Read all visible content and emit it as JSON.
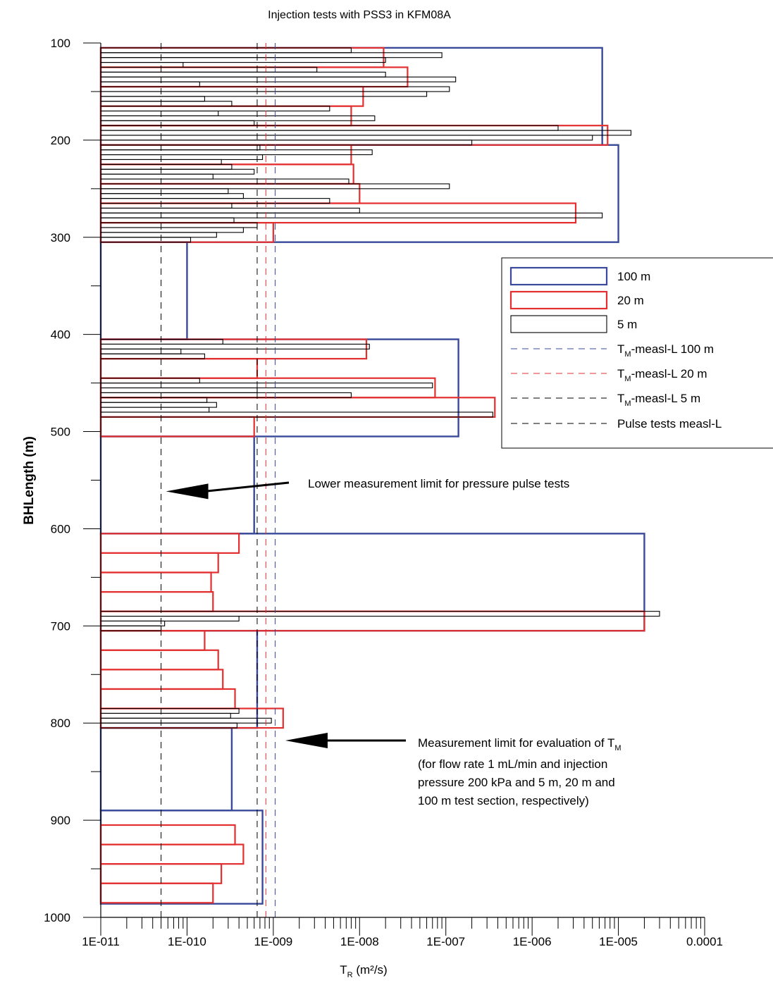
{
  "chart_data": {
    "type": "bar",
    "orientation": "horizontal",
    "title": "Injection tests with PSS3 in KFM08A",
    "ylabel": "BHLength (m)",
    "xlabel": {
      "main": "T",
      "sub": "R",
      "unit": " (m²/s)"
    },
    "x_scale": "log",
    "xlim": [
      1e-11,
      0.0001
    ],
    "ylim": [
      100,
      1000
    ],
    "y_inverted": true,
    "grid": false,
    "legend_placement": "right",
    "x_ticks": [
      "1E-011",
      "1E-010",
      "1E-009",
      "1E-008",
      "1E-007",
      "1E-006",
      "1E-005",
      "0.0001"
    ],
    "y_ticks": [
      "100",
      "200",
      "300",
      "400",
      "500",
      "600",
      "700",
      "800",
      "900",
      "1000"
    ],
    "series": [
      {
        "name": "100 m",
        "color": "#3a4a9a",
        "bars": [
          {
            "from": 105,
            "to": 205,
            "value": 6.5e-06
          },
          {
            "from": 205,
            "to": 305,
            "value": 1e-05
          },
          {
            "from": 305,
            "to": 405,
            "value": 1e-10
          },
          {
            "from": 405,
            "to": 505,
            "value": 1.4e-07
          },
          {
            "from": 505,
            "to": 605,
            "value": 6e-10
          },
          {
            "from": 605,
            "to": 705,
            "value": 2e-05
          },
          {
            "from": 705,
            "to": 805,
            "value": 6.5e-10
          },
          {
            "from": 805,
            "to": 890,
            "value": 3.3e-10
          },
          {
            "from": 890,
            "to": 986,
            "value": 7.5e-10
          }
        ]
      },
      {
        "name": "20 m",
        "color": "#e32f2f",
        "bars": [
          {
            "from": 105,
            "to": 125,
            "value": 1.9e-08
          },
          {
            "from": 125,
            "to": 145,
            "value": 3.6e-08
          },
          {
            "from": 145,
            "to": 165,
            "value": 1.1e-08
          },
          {
            "from": 165,
            "to": 185,
            "value": 8e-09
          },
          {
            "from": 185,
            "to": 205,
            "value": 7.5e-06
          },
          {
            "from": 205,
            "to": 225,
            "value": 8e-09
          },
          {
            "from": 225,
            "to": 245,
            "value": 8.5e-09
          },
          {
            "from": 245,
            "to": 265,
            "value": 1e-08
          },
          {
            "from": 265,
            "to": 285,
            "value": 3.2e-06
          },
          {
            "from": 285,
            "to": 305,
            "value": 1e-09
          },
          {
            "from": 405,
            "to": 425,
            "value": 1.2e-08
          },
          {
            "from": 425,
            "to": 445,
            "value": 6.5e-10
          },
          {
            "from": 445,
            "to": 465,
            "value": 7.5e-08
          },
          {
            "from": 465,
            "to": 485,
            "value": 3.7e-07
          },
          {
            "from": 485,
            "to": 505,
            "value": 6e-10
          },
          {
            "from": 605,
            "to": 625,
            "value": 4e-10
          },
          {
            "from": 625,
            "to": 645,
            "value": 2.3e-10
          },
          {
            "from": 645,
            "to": 665,
            "value": 1.9e-10
          },
          {
            "from": 665,
            "to": 685,
            "value": 2e-10
          },
          {
            "from": 685,
            "to": 705,
            "value": 2e-05
          },
          {
            "from": 705,
            "to": 725,
            "value": 1.6e-10
          },
          {
            "from": 725,
            "to": 745,
            "value": 2.3e-10
          },
          {
            "from": 745,
            "to": 765,
            "value": 2.6e-10
          },
          {
            "from": 765,
            "to": 785,
            "value": 3.6e-10
          },
          {
            "from": 785,
            "to": 805,
            "value": 1.3e-09
          },
          {
            "from": 905,
            "to": 925,
            "value": 3.6e-10
          },
          {
            "from": 925,
            "to": 945,
            "value": 4.5e-10
          },
          {
            "from": 945,
            "to": 965,
            "value": 2.5e-10
          },
          {
            "from": 965,
            "to": 985,
            "value": 2e-10
          }
        ]
      },
      {
        "name": "5 m",
        "color": "#000000",
        "bars": [
          {
            "from": 105,
            "to": 110,
            "value": 8e-09
          },
          {
            "from": 110,
            "to": 115,
            "value": 9e-08
          },
          {
            "from": 115,
            "to": 120,
            "value": 2e-08
          },
          {
            "from": 120,
            "to": 125,
            "value": 9e-11
          },
          {
            "from": 125,
            "to": 130,
            "value": 3.2e-09
          },
          {
            "from": 130,
            "to": 135,
            "value": 2e-08
          },
          {
            "from": 135,
            "to": 140,
            "value": 1.3e-07
          },
          {
            "from": 140,
            "to": 145,
            "value": 1.4e-10
          },
          {
            "from": 145,
            "to": 150,
            "value": 1.1e-07
          },
          {
            "from": 150,
            "to": 155,
            "value": 6e-08
          },
          {
            "from": 155,
            "to": 160,
            "value": 1.6e-10
          },
          {
            "from": 160,
            "to": 165,
            "value": 3.3e-10
          },
          {
            "from": 165,
            "to": 170,
            "value": 4.5e-09
          },
          {
            "from": 170,
            "to": 175,
            "value": 2.3e-10
          },
          {
            "from": 175,
            "to": 180,
            "value": 1.5e-08
          },
          {
            "from": 180,
            "to": 185,
            "value": 6e-10
          },
          {
            "from": 185,
            "to": 190,
            "value": 2e-06
          },
          {
            "from": 190,
            "to": 195,
            "value": 1.4e-05
          },
          {
            "from": 195,
            "to": 200,
            "value": 5e-06
          },
          {
            "from": 200,
            "to": 205,
            "value": 2e-07
          },
          {
            "from": 205,
            "to": 210,
            "value": 7e-10
          },
          {
            "from": 210,
            "to": 215,
            "value": 1.4e-08
          },
          {
            "from": 215,
            "to": 220,
            "value": 7.5e-10
          },
          {
            "from": 220,
            "to": 225,
            "value": 2.5e-10
          },
          {
            "from": 225,
            "to": 230,
            "value": 3.3e-10
          },
          {
            "from": 230,
            "to": 235,
            "value": 6e-10
          },
          {
            "from": 235,
            "to": 240,
            "value": 2e-10
          },
          {
            "from": 240,
            "to": 245,
            "value": 7.5e-09
          },
          {
            "from": 245,
            "to": 250,
            "value": 1.1e-07
          },
          {
            "from": 250,
            "to": 255,
            "value": 3e-10
          },
          {
            "from": 255,
            "to": 260,
            "value": 4.5e-10
          },
          {
            "from": 260,
            "to": 265,
            "value": 4.5e-09
          },
          {
            "from": 265,
            "to": 270,
            "value": 3.3e-10
          },
          {
            "from": 270,
            "to": 275,
            "value": 1e-08
          },
          {
            "from": 275,
            "to": 280,
            "value": 6.5e-06
          },
          {
            "from": 280,
            "to": 285,
            "value": 3.5e-10
          },
          {
            "from": 285,
            "to": 290,
            "value": 6.5e-10
          },
          {
            "from": 290,
            "to": 295,
            "value": 4.5e-10
          },
          {
            "from": 295,
            "to": 300,
            "value": 2.2e-10
          },
          {
            "from": 300,
            "to": 305,
            "value": 1.1e-10
          },
          {
            "from": 405,
            "to": 410,
            "value": 2.6e-10
          },
          {
            "from": 410,
            "to": 415,
            "value": 1.3e-08
          },
          {
            "from": 415,
            "to": 420,
            "value": 8.5e-11
          },
          {
            "from": 420,
            "to": 425,
            "value": 1.6e-10
          },
          {
            "from": 445,
            "to": 450,
            "value": 1.4e-10
          },
          {
            "from": 450,
            "to": 455,
            "value": 7e-08
          },
          {
            "from": 455,
            "to": 460,
            "value": 6.5e-10
          },
          {
            "from": 460,
            "to": 465,
            "value": 8e-09
          },
          {
            "from": 465,
            "to": 470,
            "value": 1.7e-10
          },
          {
            "from": 470,
            "to": 475,
            "value": 2.2e-10
          },
          {
            "from": 475,
            "to": 480,
            "value": 1.8e-10
          },
          {
            "from": 480,
            "to": 485,
            "value": 3.5e-07
          },
          {
            "from": 685,
            "to": 690,
            "value": 3e-05
          },
          {
            "from": 690,
            "to": 695,
            "value": 4e-10
          },
          {
            "from": 695,
            "to": 700,
            "value": 5.5e-11
          },
          {
            "from": 700,
            "to": 705,
            "value": 5e-11
          },
          {
            "from": 785,
            "to": 790,
            "value": 4e-10
          },
          {
            "from": 790,
            "to": 795,
            "value": 3.2e-10
          },
          {
            "from": 795,
            "to": 800,
            "value": 9.5e-10
          },
          {
            "from": 800,
            "to": 805,
            "value": 3.8e-10
          }
        ]
      }
    ],
    "reference_lines": [
      {
        "name": "T_M-measl-L 100 m",
        "value": 1.05e-09,
        "color": "#3a4a9a"
      },
      {
        "name": "T_M-measl-L 20 m",
        "value": 8.2e-10,
        "color": "#e32f2f"
      },
      {
        "name": "T_M-measl-L 5 m",
        "value": 6.5e-10,
        "color": "#000000"
      },
      {
        "name": "Pulse tests measl-L",
        "value": 5e-11,
        "color": "#000000"
      }
    ],
    "legend": [
      {
        "label": "100 m",
        "kind": "box",
        "color": "#3a4a9a"
      },
      {
        "label": "20 m",
        "kind": "box",
        "color": "#e32f2f"
      },
      {
        "label": "5 m",
        "kind": "box",
        "color": "#000000"
      },
      {
        "main": "T",
        "sub": "M",
        "rest": "-measl-L 100 m",
        "kind": "line",
        "color": "#3a4a9a"
      },
      {
        "main": "T",
        "sub": "M",
        "rest": "-measl-L 20 m",
        "kind": "line",
        "color": "#e32f2f"
      },
      {
        "main": "T",
        "sub": "M",
        "rest": "-measl-L 5 m",
        "kind": "line",
        "color": "#000000"
      },
      {
        "label": "Pulse tests measl-L",
        "kind": "line",
        "color": "#000000"
      }
    ],
    "annotations": [
      {
        "lines": [
          "Lower measurement limit for pressure pulse tests"
        ],
        "arrow_to": {
          "x": 5e-11,
          "y": 555
        }
      },
      {
        "first_line": {
          "main": "Measurement limit for evaluation of T",
          "sub": "M"
        },
        "lines": [
          "(for flow rate 1 mL/min and injection",
          "pressure 200 kPa and 5 m, 20 m and",
          "100 m test section, respectively)"
        ],
        "arrow_to": {
          "x": 1.1e-09,
          "y": 815
        }
      }
    ]
  }
}
